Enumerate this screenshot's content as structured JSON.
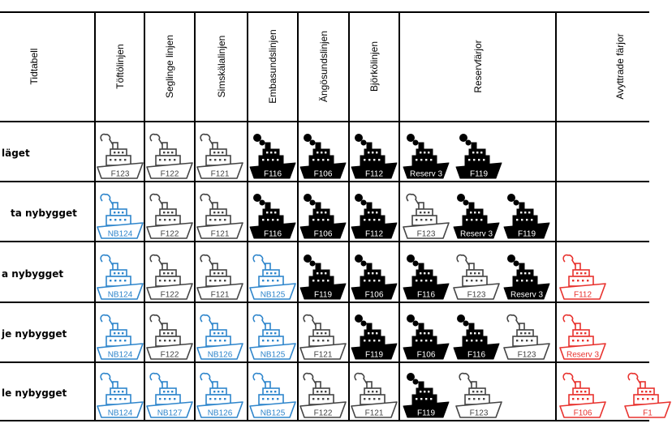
{
  "headers": {
    "schedule": "Tidtabell",
    "routes": [
      "Töftölinjen",
      "Seglinge linjen",
      "Simskälalinjen",
      "Embasundslinjen",
      "Ängösundslinjen",
      "Björkölinjen"
    ],
    "reserve": "Reservfärjor",
    "retired": "Avyttrade färjor"
  },
  "rows": [
    {
      "label": "läget",
      "cells": [
        [
          {
            "n": "F123",
            "s": "old"
          }
        ],
        [
          {
            "n": "F122",
            "s": "old"
          }
        ],
        [
          {
            "n": "F121",
            "s": "old"
          }
        ],
        [
          {
            "n": "F116",
            "s": "black"
          }
        ],
        [
          {
            "n": "F106",
            "s": "black"
          }
        ],
        [
          {
            "n": "F112",
            "s": "black"
          }
        ],
        [
          {
            "n": "Reserv 3",
            "s": "black"
          },
          {
            "n": "F119",
            "s": "black"
          }
        ],
        []
      ]
    },
    {
      "label": "ta nybygget",
      "cells": [
        [
          {
            "n": "NB124",
            "s": "new"
          }
        ],
        [
          {
            "n": "F122",
            "s": "old"
          }
        ],
        [
          {
            "n": "F121",
            "s": "old"
          }
        ],
        [
          {
            "n": "F116",
            "s": "black"
          }
        ],
        [
          {
            "n": "F106",
            "s": "black"
          }
        ],
        [
          {
            "n": "F112",
            "s": "black"
          }
        ],
        [
          {
            "n": "F123",
            "s": "old"
          },
          {
            "n": "Reserv 3",
            "s": "black"
          },
          {
            "n": "F119",
            "s": "black"
          }
        ],
        []
      ]
    },
    {
      "label": "a nybygget",
      "cells": [
        [
          {
            "n": "NB124",
            "s": "new"
          }
        ],
        [
          {
            "n": "F122",
            "s": "old"
          }
        ],
        [
          {
            "n": "F121",
            "s": "old"
          }
        ],
        [
          {
            "n": "NB125",
            "s": "new"
          }
        ],
        [
          {
            "n": "F119",
            "s": "black"
          }
        ],
        [
          {
            "n": "F106",
            "s": "black"
          }
        ],
        [
          {
            "n": "F116",
            "s": "black"
          },
          {
            "n": "F123",
            "s": "old"
          },
          {
            "n": "Reserv 3",
            "s": "black"
          }
        ],
        [
          {
            "n": "F112",
            "s": "sold"
          }
        ]
      ]
    },
    {
      "label": "je nybygget",
      "cells": [
        [
          {
            "n": "NB124",
            "s": "new"
          }
        ],
        [
          {
            "n": "F122",
            "s": "old"
          }
        ],
        [
          {
            "n": "NB126",
            "s": "new"
          }
        ],
        [
          {
            "n": "NB125",
            "s": "new"
          }
        ],
        [
          {
            "n": "F121",
            "s": "old"
          }
        ],
        [
          {
            "n": "F119",
            "s": "black"
          }
        ],
        [
          {
            "n": "F106",
            "s": "black"
          },
          {
            "n": "F116",
            "s": "black"
          },
          {
            "n": "F123",
            "s": "old"
          }
        ],
        [
          {
            "n": "Reserv 3",
            "s": "sold"
          }
        ]
      ]
    },
    {
      "label": "le nybygget",
      "cells": [
        [
          {
            "n": "NB124",
            "s": "new"
          }
        ],
        [
          {
            "n": "NB127",
            "s": "new"
          }
        ],
        [
          {
            "n": "NB126",
            "s": "new"
          }
        ],
        [
          {
            "n": "NB125",
            "s": "new"
          }
        ],
        [
          {
            "n": "F122",
            "s": "old"
          }
        ],
        [
          {
            "n": "F121",
            "s": "old"
          }
        ],
        [
          {
            "n": "F119",
            "s": "black"
          },
          {
            "n": "F123",
            "s": "old"
          }
        ],
        [
          {
            "n": "F106",
            "s": "sold"
          },
          {
            "n": "F1",
            "s": "sold"
          }
        ]
      ]
    }
  ],
  "colors": {
    "old": "#444444",
    "black": "#000000",
    "new": "#2f86cc",
    "sold": "#e8322e"
  },
  "icon": "ferry-icon"
}
